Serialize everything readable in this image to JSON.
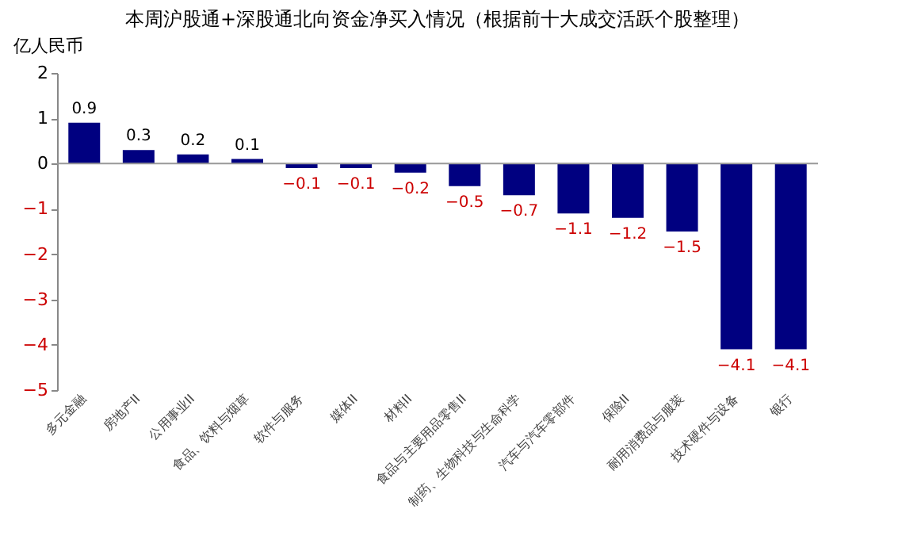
{
  "chart_data": {
    "type": "bar",
    "title": "本周沪股通+深股通北向资金净买入情况（根据前十大成交活跃个股整理）",
    "ylabel": "亿人民币",
    "categories": [
      "多元金融",
      "房地产II",
      "公用事业II",
      "食品、饮料与烟草",
      "软件与服务",
      "媒体II",
      "材料II",
      "食品与主要用品零售II",
      "制药、生物科技与生命科学",
      "汽车与汽车零部件",
      "保险II",
      "耐用消费品与服装",
      "技术硬件与设备",
      "银行"
    ],
    "values": [
      0.9,
      0.3,
      0.2,
      0.1,
      -0.1,
      -0.1,
      -0.2,
      -0.5,
      -0.7,
      -1.1,
      -1.2,
      -1.5,
      -4.1,
      -4.1
    ],
    "color": "#000080",
    "ylim": [
      -5,
      2
    ],
    "yticks": [
      -5,
      -4,
      -3,
      -2,
      -1,
      0,
      1,
      2
    ],
    "data_labels": true
  }
}
